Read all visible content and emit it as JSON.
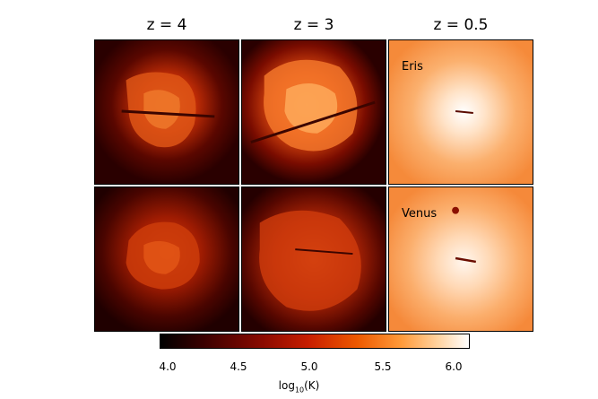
{
  "columns": [
    {
      "title": "z = 4"
    },
    {
      "title": "z = 3"
    },
    {
      "title": "z = 0.5"
    }
  ],
  "rows": [
    {
      "label": "Eris"
    },
    {
      "label": "Venus"
    }
  ],
  "colorbar": {
    "ticks": [
      "4.0",
      "4.5",
      "5.0",
      "5.5",
      "6.0"
    ],
    "label_main": "log",
    "label_sub": "10",
    "label_unit": "(K)"
  }
}
